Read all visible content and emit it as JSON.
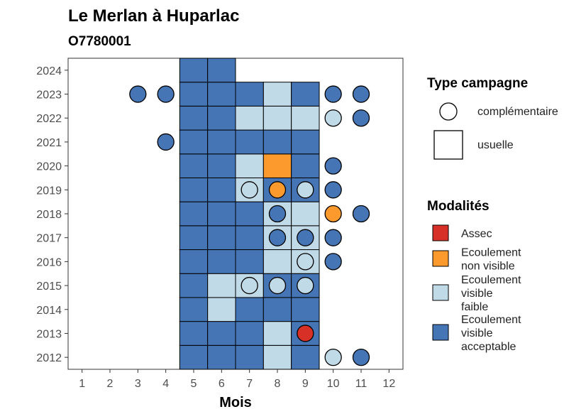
{
  "chart_data": {
    "type": "heatmap",
    "title": "Le Merlan à Huparlac",
    "subtitle": "O7780001",
    "xlabel": "Mois",
    "ylabel": "",
    "x_ticks": [
      "1",
      "2",
      "3",
      "4",
      "5",
      "6",
      "7",
      "8",
      "9",
      "10",
      "11",
      "12"
    ],
    "y_ticks": [
      "2012",
      "2013",
      "2014",
      "2015",
      "2016",
      "2017",
      "2018",
      "2019",
      "2020",
      "2021",
      "2022",
      "2023",
      "2024"
    ],
    "xlim": [
      0.5,
      12.5
    ],
    "ylim": [
      2011.5,
      2024.5
    ],
    "grid": false,
    "legend_position": "right",
    "legend_type": {
      "title": "Type campagne",
      "entries": [
        {
          "key": "complementaire",
          "label": "complémentaire",
          "shape": "circle"
        },
        {
          "key": "usuelle",
          "label": "usuelle",
          "shape": "square"
        }
      ]
    },
    "legend_modalites": {
      "title": "Modalités",
      "entries": [
        {
          "key": "assec",
          "label_lines": [
            "Assec"
          ],
          "color": "#d73027"
        },
        {
          "key": "nonvisible",
          "label_lines": [
            "Ecoulement",
            "non visible"
          ],
          "color": "#fd9a2e"
        },
        {
          "key": "faible",
          "label_lines": [
            "Ecoulement",
            "visible",
            "faible"
          ],
          "color": "#c1dae8"
        },
        {
          "key": "acceptable",
          "label_lines": [
            "Ecoulement",
            "visible",
            "acceptable"
          ],
          "color": "#4575b4"
        }
      ]
    },
    "usual_campaigns": [
      {
        "year": 2012,
        "values": {
          "5": "acceptable",
          "6": "acceptable",
          "7": "acceptable",
          "8": "faible",
          "9": "acceptable"
        }
      },
      {
        "year": 2013,
        "values": {
          "5": "acceptable",
          "6": "acceptable",
          "7": "acceptable",
          "8": "faible",
          "9": "acceptable"
        }
      },
      {
        "year": 2014,
        "values": {
          "5": "acceptable",
          "6": "faible",
          "7": "acceptable",
          "8": "acceptable",
          "9": "acceptable"
        }
      },
      {
        "year": 2015,
        "values": {
          "5": "acceptable",
          "6": "faible",
          "7": "faible",
          "8": "acceptable",
          "9": "acceptable"
        }
      },
      {
        "year": 2016,
        "values": {
          "5": "acceptable",
          "6": "acceptable",
          "7": "acceptable",
          "8": "faible",
          "9": "faible"
        }
      },
      {
        "year": 2017,
        "values": {
          "5": "acceptable",
          "6": "acceptable",
          "7": "acceptable",
          "8": "faible",
          "9": "faible"
        }
      },
      {
        "year": 2018,
        "values": {
          "5": "acceptable",
          "6": "acceptable",
          "7": "acceptable",
          "8": "faible",
          "9": "faible"
        }
      },
      {
        "year": 2019,
        "values": {
          "5": "acceptable",
          "6": "acceptable",
          "7": "faible",
          "8": "acceptable",
          "9": "acceptable"
        }
      },
      {
        "year": 2020,
        "values": {
          "5": "acceptable",
          "6": "acceptable",
          "7": "faible",
          "8": "nonvisible",
          "9": "acceptable"
        }
      },
      {
        "year": 2021,
        "values": {
          "5": "acceptable",
          "6": "acceptable",
          "7": "acceptable",
          "8": "acceptable",
          "9": "acceptable"
        }
      },
      {
        "year": 2022,
        "values": {
          "5": "acceptable",
          "6": "acceptable",
          "7": "faible",
          "8": "faible",
          "9": "faible"
        }
      },
      {
        "year": 2023,
        "values": {
          "5": "acceptable",
          "6": "acceptable",
          "7": "acceptable",
          "8": "faible",
          "9": "acceptable"
        }
      },
      {
        "year": 2024,
        "values": {
          "5": "acceptable",
          "6": "acceptable"
        }
      }
    ],
    "complementary_campaigns": [
      {
        "year": 2012,
        "month": 10,
        "value": "faible"
      },
      {
        "year": 2012,
        "month": 11,
        "value": "acceptable"
      },
      {
        "year": 2013,
        "month": 9,
        "value": "assec"
      },
      {
        "year": 2015,
        "month": 7,
        "value": "faible"
      },
      {
        "year": 2015,
        "month": 8,
        "value": "faible"
      },
      {
        "year": 2015,
        "month": 9,
        "value": "faible"
      },
      {
        "year": 2016,
        "month": 9,
        "value": "faible"
      },
      {
        "year": 2016,
        "month": 10,
        "value": "acceptable"
      },
      {
        "year": 2017,
        "month": 8,
        "value": "acceptable"
      },
      {
        "year": 2017,
        "month": 9,
        "value": "acceptable"
      },
      {
        "year": 2017,
        "month": 10,
        "value": "acceptable"
      },
      {
        "year": 2018,
        "month": 8,
        "value": "acceptable"
      },
      {
        "year": 2018,
        "month": 10,
        "value": "nonvisible"
      },
      {
        "year": 2018,
        "month": 11,
        "value": "acceptable"
      },
      {
        "year": 2019,
        "month": 7,
        "value": "faible"
      },
      {
        "year": 2019,
        "month": 8,
        "value": "nonvisible"
      },
      {
        "year": 2019,
        "month": 9,
        "value": "faible"
      },
      {
        "year": 2019,
        "month": 10,
        "value": "acceptable"
      },
      {
        "year": 2020,
        "month": 10,
        "value": "acceptable"
      },
      {
        "year": 2021,
        "month": 4,
        "value": "acceptable"
      },
      {
        "year": 2022,
        "month": 10,
        "value": "faible"
      },
      {
        "year": 2022,
        "month": 11,
        "value": "acceptable"
      },
      {
        "year": 2023,
        "month": 3,
        "value": "acceptable"
      },
      {
        "year": 2023,
        "month": 4,
        "value": "acceptable"
      },
      {
        "year": 2023,
        "month": 10,
        "value": "acceptable"
      },
      {
        "year": 2023,
        "month": 11,
        "value": "acceptable"
      }
    ]
  }
}
